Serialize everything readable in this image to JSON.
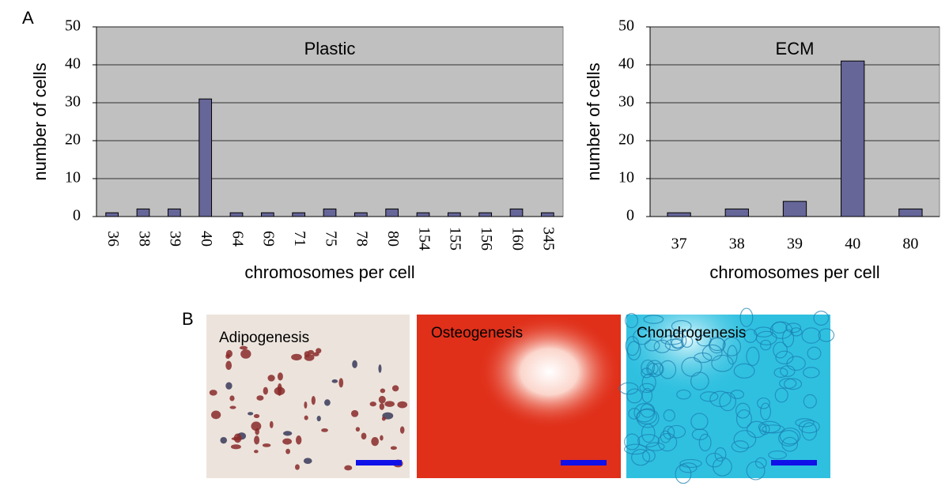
{
  "panel_labels": [
    "A",
    "B"
  ],
  "chart_data": [
    {
      "type": "bar",
      "title": "Plastic",
      "y_label": "number of cells",
      "x_label": "chromosomes per cell",
      "categories": [
        "36",
        "38",
        "39",
        "40",
        "64",
        "69",
        "71",
        "75",
        "78",
        "80",
        "154",
        "155",
        "156",
        "160",
        "345"
      ],
      "values": [
        1,
        2,
        2,
        31,
        1,
        1,
        1,
        2,
        1,
        2,
        1,
        1,
        1,
        2,
        1
      ],
      "color": "#666699",
      "ylim": [
        0,
        50
      ],
      "yticks": [
        0,
        10,
        20,
        30,
        40,
        50
      ],
      "grid": true,
      "x_tick_rotation": 90
    },
    {
      "type": "bar",
      "title": "ECM",
      "y_label": "number of cells",
      "x_label": "chromosomes per cell",
      "categories": [
        "37",
        "38",
        "39",
        "40",
        "80"
      ],
      "values": [
        1,
        2,
        4,
        41,
        2
      ],
      "color": "#666699",
      "ylim": [
        0,
        50
      ],
      "yticks": [
        0,
        10,
        20,
        30,
        40,
        50
      ],
      "grid": true,
      "x_tick_rotation": 0
    }
  ],
  "images": [
    {
      "label": "Adipogenesis"
    },
    {
      "label": "Osteogenesis"
    },
    {
      "label": "Chondrogenesis"
    }
  ]
}
